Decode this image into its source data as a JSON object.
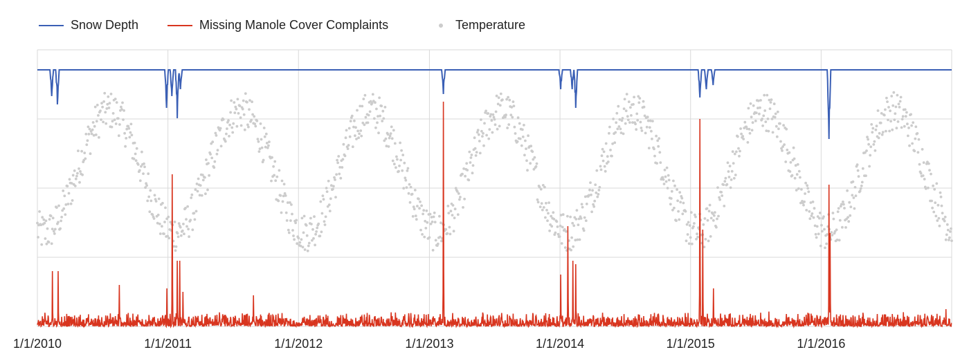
{
  "chart_data": {
    "type": "line",
    "title": "",
    "xlabel": "",
    "ylabel": "",
    "x_tick_labels": [
      "1/1/2010",
      "1/1/2011",
      "1/1/2012",
      "1/1/2013",
      "1/1/2014",
      "1/1/2015",
      "1/1/2016"
    ],
    "x_range": [
      "1/1/2010",
      "12/31/2016"
    ],
    "grid": true,
    "legend_position": "top-left",
    "series": [
      {
        "name": "Snow Depth",
        "kind": "line",
        "color": "#3a5fb5",
        "note": "baseline flat; dips downward during winter snow events",
        "events": [
          {
            "date": "2010-02-10",
            "depth": 38
          },
          {
            "date": "2010-02-26",
            "depth": 50
          },
          {
            "date": "2010-12-28",
            "depth": 55
          },
          {
            "date": "2011-01-12",
            "depth": 38
          },
          {
            "date": "2011-01-27",
            "depth": 70
          },
          {
            "date": "2011-02-05",
            "depth": 28
          },
          {
            "date": "2013-02-09",
            "depth": 35
          },
          {
            "date": "2014-01-03",
            "depth": 28
          },
          {
            "date": "2014-02-04",
            "depth": 28
          },
          {
            "date": "2014-02-14",
            "depth": 55
          },
          {
            "date": "2015-01-27",
            "depth": 40
          },
          {
            "date": "2015-02-14",
            "depth": 28
          },
          {
            "date": "2015-03-05",
            "depth": 22
          },
          {
            "date": "2016-01-23",
            "depth": 100
          }
        ]
      },
      {
        "name": "Missing Manole Cover Complaints",
        "kind": "line",
        "color": "#d8351f",
        "baseline_range": [
          0,
          8
        ],
        "spikes": [
          {
            "date": "2010-02-12",
            "value": 80
          },
          {
            "date": "2010-02-28",
            "value": 80
          },
          {
            "date": "2010-08-18",
            "value": 60
          },
          {
            "date": "2010-12-29",
            "value": 55
          },
          {
            "date": "2011-01-13",
            "value": 220
          },
          {
            "date": "2011-01-27",
            "value": 95
          },
          {
            "date": "2011-02-03",
            "value": 95
          },
          {
            "date": "2011-02-12",
            "value": 50
          },
          {
            "date": "2011-08-28",
            "value": 45
          },
          {
            "date": "2013-02-09",
            "value": 325
          },
          {
            "date": "2014-01-03",
            "value": 75
          },
          {
            "date": "2014-01-23",
            "value": 145
          },
          {
            "date": "2014-02-06",
            "value": 95
          },
          {
            "date": "2014-02-14",
            "value": 90
          },
          {
            "date": "2015-01-27",
            "value": 300
          },
          {
            "date": "2015-02-04",
            "value": 140
          },
          {
            "date": "2015-03-06",
            "value": 55
          },
          {
            "date": "2016-01-23",
            "value": 205
          },
          {
            "date": "2016-01-26",
            "value": 135
          },
          {
            "date": "2016-12-15",
            "value": 25
          }
        ]
      },
      {
        "name": "Temperature",
        "kind": "scatter",
        "color": "#cccccc",
        "note": "daily temperature; annual seasonal cycle",
        "mean_f": 56,
        "amplitude_f": 22,
        "peak_day_of_year": 202,
        "noise_f": 7
      }
    ]
  }
}
